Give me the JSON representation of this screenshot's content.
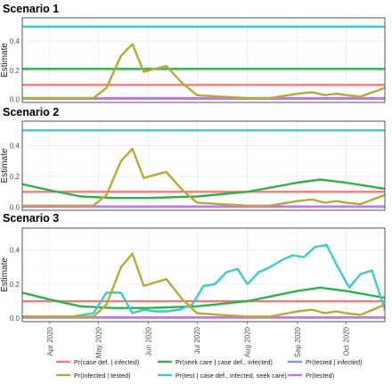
{
  "chart_data": [
    {
      "type": "line",
      "title": "Scenario 1",
      "xlabel": "",
      "ylabel": "Estimate",
      "xlim": [
        "2020-03-15",
        "2020-10-25"
      ],
      "ylim": [
        -0.02,
        0.56
      ],
      "yticks": [
        0.0,
        0.2,
        0.4
      ],
      "grid": true,
      "series": [
        {
          "name": "Pr(case def. | infected)",
          "color": "#F07C7C",
          "x": [
            "2020-03-15",
            "2020-10-25"
          ],
          "y": [
            0.1,
            0.1
          ]
        },
        {
          "name": "Pr(infected | tested)",
          "color": "#B8A839",
          "x": [
            "2020-03-15",
            "2020-04-15",
            "2020-04-28",
            "2020-05-06",
            "2020-05-15",
            "2020-05-22",
            "2020-05-29",
            "2020-06-05",
            "2020-06-12",
            "2020-06-22",
            "2020-07-01",
            "2020-07-15",
            "2020-08-01",
            "2020-08-15",
            "2020-09-01",
            "2020-09-10",
            "2020-09-18",
            "2020-09-25",
            "2020-10-01",
            "2020-10-10",
            "2020-10-25"
          ],
          "y": [
            0.01,
            0.01,
            0.01,
            0.08,
            0.3,
            0.38,
            0.19,
            0.21,
            0.23,
            0.11,
            0.03,
            0.02,
            0.01,
            0.01,
            0.04,
            0.05,
            0.03,
            0.04,
            0.03,
            0.02,
            0.08
          ]
        },
        {
          "name": "Pr(seek care | case def., infected)",
          "color": "#2DB24B",
          "x": [
            "2020-03-15",
            "2020-10-25"
          ],
          "y": [
            0.21,
            0.21
          ]
        },
        {
          "name": "Pr(test | case def., infected, seek care)",
          "color": "#3CCCC8",
          "x": [
            "2020-03-15",
            "2020-10-25"
          ],
          "y": [
            0.5,
            0.5
          ]
        },
        {
          "name": "Pr(tested | infected)",
          "color": "#6F9FE0",
          "x": [
            "2020-03-15",
            "2020-10-25"
          ],
          "y": [
            0.01,
            0.01
          ]
        },
        {
          "name": "Pr(tested)",
          "color": "#C774E8",
          "x": [
            "2020-03-15",
            "2020-10-25"
          ],
          "y": [
            0.005,
            0.005
          ]
        }
      ]
    },
    {
      "type": "line",
      "title": "Scenario 2",
      "xlabel": "",
      "ylabel": "Estimate",
      "xlim": [
        "2020-03-15",
        "2020-10-25"
      ],
      "ylim": [
        -0.02,
        0.56
      ],
      "yticks": [
        0.0,
        0.2,
        0.4
      ],
      "grid": true,
      "series": [
        {
          "name": "Pr(case def. | infected)",
          "color": "#F07C7C",
          "x": [
            "2020-03-15",
            "2020-10-25"
          ],
          "y": [
            0.1,
            0.1
          ]
        },
        {
          "name": "Pr(infected | tested)",
          "color": "#B8A839",
          "x": [
            "2020-03-15",
            "2020-04-15",
            "2020-04-28",
            "2020-05-06",
            "2020-05-15",
            "2020-05-22",
            "2020-05-29",
            "2020-06-05",
            "2020-06-12",
            "2020-06-22",
            "2020-07-01",
            "2020-07-15",
            "2020-08-01",
            "2020-08-15",
            "2020-09-01",
            "2020-09-10",
            "2020-09-18",
            "2020-09-25",
            "2020-10-01",
            "2020-10-10",
            "2020-10-25"
          ],
          "y": [
            0.01,
            0.01,
            0.01,
            0.08,
            0.3,
            0.38,
            0.19,
            0.21,
            0.23,
            0.11,
            0.03,
            0.02,
            0.01,
            0.01,
            0.04,
            0.05,
            0.03,
            0.04,
            0.03,
            0.02,
            0.08
          ]
        },
        {
          "name": "Pr(seek care | case def., infected)",
          "color": "#2DB24B",
          "x": [
            "2020-03-15",
            "2020-04-01",
            "2020-04-20",
            "2020-05-10",
            "2020-06-01",
            "2020-07-01",
            "2020-08-01",
            "2020-09-01",
            "2020-09-15",
            "2020-10-01",
            "2020-10-25"
          ],
          "y": [
            0.15,
            0.11,
            0.07,
            0.06,
            0.06,
            0.07,
            0.1,
            0.16,
            0.18,
            0.16,
            0.12
          ]
        },
        {
          "name": "Pr(test | case def., infected, seek care)",
          "color": "#3CCCC8",
          "x": [
            "2020-03-15",
            "2020-10-25"
          ],
          "y": [
            0.5,
            0.5
          ]
        },
        {
          "name": "Pr(tested | infected)",
          "color": "#6F9FE0",
          "x": [
            "2020-03-15",
            "2020-10-25"
          ],
          "y": [
            0.005,
            0.005
          ]
        },
        {
          "name": "Pr(tested)",
          "color": "#C774E8",
          "x": [
            "2020-03-15",
            "2020-10-25"
          ],
          "y": [
            0.003,
            0.003
          ]
        }
      ]
    },
    {
      "type": "line",
      "title": "Scenario 3",
      "xlabel": "",
      "ylabel": "Estimate",
      "xlim": [
        "2020-03-15",
        "2020-10-25"
      ],
      "ylim": [
        -0.02,
        0.53
      ],
      "yticks": [
        0.0,
        0.2,
        0.4
      ],
      "grid": true,
      "xticks": [
        "Apr 2020",
        "May 2020",
        "Jun 2020",
        "Jul 2020",
        "Aug 2020",
        "Sep 2020",
        "Oct 2020"
      ],
      "xtick_dates": [
        "2020-04-01",
        "2020-05-01",
        "2020-06-01",
        "2020-07-01",
        "2020-08-01",
        "2020-09-01",
        "2020-10-01"
      ],
      "series": [
        {
          "name": "Pr(case def. | infected)",
          "color": "#F07C7C",
          "x": [
            "2020-03-15",
            "2020-10-25"
          ],
          "y": [
            0.1,
            0.1
          ]
        },
        {
          "name": "Pr(infected | tested)",
          "color": "#B8A839",
          "x": [
            "2020-03-15",
            "2020-04-15",
            "2020-04-28",
            "2020-05-06",
            "2020-05-15",
            "2020-05-22",
            "2020-05-29",
            "2020-06-05",
            "2020-06-12",
            "2020-06-22",
            "2020-07-01",
            "2020-07-15",
            "2020-08-01",
            "2020-08-15",
            "2020-09-01",
            "2020-09-10",
            "2020-09-18",
            "2020-09-25",
            "2020-10-01",
            "2020-10-10",
            "2020-10-25"
          ],
          "y": [
            0.01,
            0.01,
            0.01,
            0.08,
            0.3,
            0.38,
            0.19,
            0.21,
            0.23,
            0.11,
            0.03,
            0.02,
            0.01,
            0.01,
            0.04,
            0.05,
            0.03,
            0.04,
            0.03,
            0.02,
            0.08
          ]
        },
        {
          "name": "Pr(seek care | case def., infected)",
          "color": "#2DB24B",
          "x": [
            "2020-03-15",
            "2020-04-01",
            "2020-04-20",
            "2020-05-10",
            "2020-06-01",
            "2020-07-01",
            "2020-08-01",
            "2020-09-01",
            "2020-09-15",
            "2020-10-01",
            "2020-10-25"
          ],
          "y": [
            0.15,
            0.11,
            0.07,
            0.06,
            0.06,
            0.07,
            0.1,
            0.16,
            0.18,
            0.16,
            0.12
          ]
        },
        {
          "name": "Pr(test | case def., infected, seek care)",
          "color": "#3CCCC8",
          "x": [
            "2020-03-15",
            "2020-04-15",
            "2020-04-28",
            "2020-05-06",
            "2020-05-15",
            "2020-05-22",
            "2020-05-29",
            "2020-06-05",
            "2020-06-12",
            "2020-06-20",
            "2020-06-28",
            "2020-07-05",
            "2020-07-12",
            "2020-07-19",
            "2020-07-26",
            "2020-08-01",
            "2020-08-08",
            "2020-08-15",
            "2020-08-22",
            "2020-08-29",
            "2020-09-05",
            "2020-09-12",
            "2020-09-19",
            "2020-09-26",
            "2020-10-03",
            "2020-10-10",
            "2020-10-17",
            "2020-10-25"
          ],
          "y": [
            0.01,
            0.01,
            0.03,
            0.15,
            0.15,
            0.03,
            0.05,
            0.04,
            0.04,
            0.05,
            0.08,
            0.19,
            0.2,
            0.27,
            0.29,
            0.2,
            0.27,
            0.3,
            0.34,
            0.37,
            0.36,
            0.42,
            0.43,
            0.3,
            0.18,
            0.26,
            0.28,
            0.05
          ]
        },
        {
          "name": "Pr(tested | infected)",
          "color": "#6F9FE0",
          "x": [
            "2020-03-15",
            "2020-10-25"
          ],
          "y": [
            0.005,
            0.005
          ]
        },
        {
          "name": "Pr(tested)",
          "color": "#C774E8",
          "x": [
            "2020-03-15",
            "2020-10-25"
          ],
          "y": [
            0.003,
            0.003
          ]
        }
      ]
    }
  ],
  "legend": {
    "placement": "bottom",
    "items": [
      {
        "label": "Pr(case def. | infected)",
        "color": "#F07C7C"
      },
      {
        "label": "Pr(seek care | case def., infected)",
        "color": "#2DB24B"
      },
      {
        "label": "Pr(tested | infected)",
        "color": "#6F9FE0"
      },
      {
        "label": "Pr(infected | tested)",
        "color": "#B8A839"
      },
      {
        "label": "Pr(test | case def., infected, seek care)",
        "color": "#3CCCC8"
      },
      {
        "label": "Pr(tested)",
        "color": "#C774E8"
      }
    ]
  }
}
